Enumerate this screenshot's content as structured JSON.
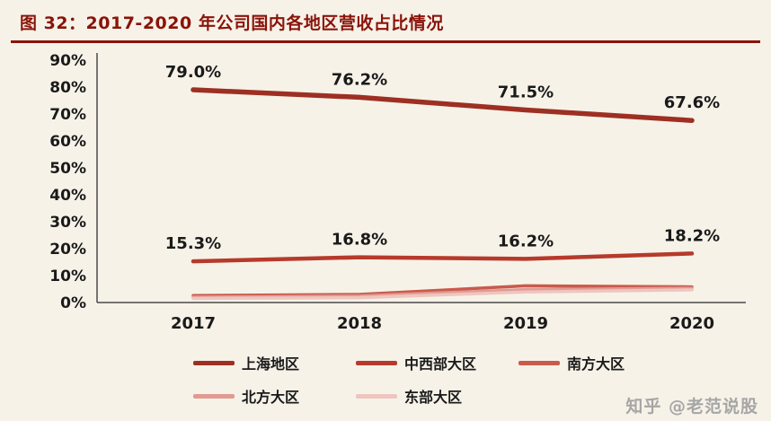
{
  "page": {
    "title": "图 32：2017-2020 年公司国内各地区营收占比情况",
    "watermark": "知乎 @老范说股",
    "colors": {
      "background": "#f6f2e8",
      "title": "#8a1309",
      "rule": "#8a1309",
      "axis": "#4a4a4a",
      "label": "#1a1a1a",
      "watermark": "#a6a6a6"
    }
  },
  "chart_data": {
    "type": "line",
    "title": "图 32：2017-2020 年公司国内各地区营收占比情况",
    "categories": [
      "2017",
      "2018",
      "2019",
      "2020"
    ],
    "series": [
      {
        "name": "上海地区",
        "values": [
          79.0,
          76.2,
          71.5,
          67.6
        ],
        "color": "#9d2f23",
        "show_labels": true
      },
      {
        "name": "中西部大区",
        "values": [
          15.3,
          16.8,
          16.2,
          18.2
        ],
        "color": "#b63a2b",
        "show_labels": true
      },
      {
        "name": "南方大区",
        "values": [
          2.6,
          3.0,
          6.2,
          5.8
        ],
        "color": "#c95a4c",
        "show_labels": false
      },
      {
        "name": "北方大区",
        "values": [
          2.0,
          2.4,
          4.8,
          5.3
        ],
        "color": "#e19a92",
        "show_labels": false
      },
      {
        "name": "东部大区",
        "values": [
          1.5,
          1.8,
          3.9,
          4.7
        ],
        "color": "#efc5bf",
        "show_labels": false
      }
    ],
    "xlabel": "",
    "ylabel": "",
    "ylim": [
      0,
      90
    ],
    "y_ticks": [
      "0%",
      "10%",
      "20%",
      "30%",
      "40%",
      "50%",
      "60%",
      "70%",
      "80%",
      "90%"
    ],
    "grid": false,
    "legend_position": "bottom"
  }
}
